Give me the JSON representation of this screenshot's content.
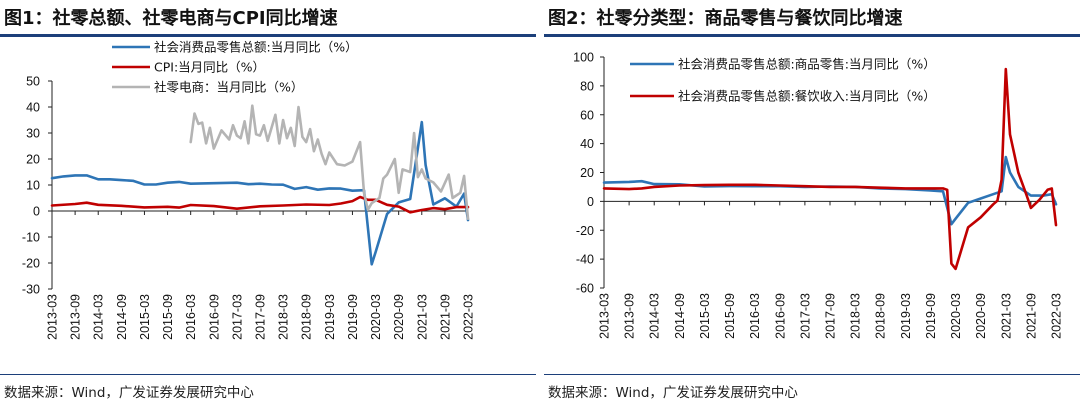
{
  "charts": [
    {
      "title": "图1：社零总额、社零电商与CPI同比增速",
      "source": "数据来源：Wind，广发证券发展研究中心"
    },
    {
      "title": "图2：社零分类型：商品零售与餐饮同比增速",
      "source": "数据来源：Wind，广发证券发展研究中心"
    }
  ],
  "chart_data": [
    {
      "type": "line",
      "title": "图1：社零总额、社零电商与CPI同比增速",
      "xlabel": "",
      "ylabel": "",
      "ylim": [
        -30,
        50
      ],
      "yticks": [
        50,
        40,
        30,
        20,
        10,
        0,
        -10,
        -20,
        -30
      ],
      "x_tick_labels": [
        "2013-03",
        "2013-09",
        "2014-03",
        "2014-09",
        "2015-03",
        "2015-09",
        "2016-03",
        "2016-09",
        "2017-03",
        "2017-09",
        "2018-03",
        "2018-09",
        "2019-03",
        "2019-09",
        "2020-03",
        "2020-09",
        "2021-03",
        "2021-09",
        "2022-03"
      ],
      "x_range": [
        "2013-03",
        "2022-03"
      ],
      "series": [
        {
          "name": "社会消费品零售总额:当月同比（%）",
          "color": "#2e75b6",
          "points": [
            [
              0,
              12.6
            ],
            [
              3,
              13.3
            ],
            [
              6,
              13.7
            ],
            [
              9,
              13.7
            ],
            [
              12,
              12.2
            ],
            [
              15,
              12.2
            ],
            [
              18,
              11.9
            ],
            [
              21,
              11.6
            ],
            [
              24,
              10.2
            ],
            [
              27,
              10.2
            ],
            [
              30,
              10.9
            ],
            [
              33,
              11.2
            ],
            [
              36,
              10.5
            ],
            [
              39,
              10.6
            ],
            [
              42,
              10.7
            ],
            [
              45,
              10.8
            ],
            [
              48,
              10.9
            ],
            [
              51,
              10.3
            ],
            [
              54,
              10.5
            ],
            [
              57,
              10.2
            ],
            [
              60,
              10.1
            ],
            [
              63,
              8.5
            ],
            [
              66,
              9.2
            ],
            [
              69,
              8.2
            ],
            [
              72,
              8.7
            ],
            [
              75,
              8.6
            ],
            [
              78,
              7.8
            ],
            [
              81,
              8.0
            ],
            [
              83,
              -20.5
            ],
            [
              84,
              -15.8
            ],
            [
              87,
              -1.1
            ],
            [
              90,
              3.3
            ],
            [
              93,
              4.6
            ],
            [
              96,
              34.2
            ],
            [
              97,
              17.7
            ],
            [
              99,
              2.5
            ],
            [
              102,
              4.9
            ],
            [
              105,
              1.7
            ],
            [
              107,
              6.7
            ],
            [
              108,
              -3.5
            ]
          ]
        },
        {
          "name": "CPI:当月同比（%）",
          "color": "#c00000",
          "points": [
            [
              0,
              2.1
            ],
            [
              6,
              2.7
            ],
            [
              9,
              3.2
            ],
            [
              12,
              2.4
            ],
            [
              18,
              2.0
            ],
            [
              24,
              1.4
            ],
            [
              30,
              1.6
            ],
            [
              33,
              1.3
            ],
            [
              36,
              2.3
            ],
            [
              42,
              1.9
            ],
            [
              48,
              0.9
            ],
            [
              54,
              1.8
            ],
            [
              60,
              2.1
            ],
            [
              66,
              2.5
            ],
            [
              72,
              2.3
            ],
            [
              75,
              2.9
            ],
            [
              78,
              3.8
            ],
            [
              80,
              5.4
            ],
            [
              82,
              4.3
            ],
            [
              84,
              4.3
            ],
            [
              87,
              2.4
            ],
            [
              90,
              1.7
            ],
            [
              93,
              -0.5
            ],
            [
              96,
              0.4
            ],
            [
              99,
              1.1
            ],
            [
              102,
              0.7
            ],
            [
              105,
              1.5
            ],
            [
              108,
              1.5
            ]
          ]
        },
        {
          "name": "社零电商：当月同比（%）",
          "color": "#b4b4b4",
          "points": [
            [
              36,
              26.5
            ],
            [
              37,
              37.5
            ],
            [
              38,
              33.5
            ],
            [
              39,
              34.0
            ],
            [
              40,
              26.0
            ],
            [
              41,
              32.0
            ],
            [
              42,
              24.0
            ],
            [
              44,
              31.0
            ],
            [
              46,
              27.5
            ],
            [
              47,
              33.0
            ],
            [
              48,
              29.0
            ],
            [
              49,
              28.0
            ],
            [
              50,
              34.5
            ],
            [
              51,
              26.0
            ],
            [
              52,
              40.5
            ],
            [
              53,
              29.5
            ],
            [
              54,
              29.0
            ],
            [
              55,
              33.0
            ],
            [
              56,
              27.0
            ],
            [
              58,
              37.0
            ],
            [
              59,
              26.0
            ],
            [
              60,
              35.0
            ],
            [
              61,
              28.0
            ],
            [
              62,
              32.0
            ],
            [
              63,
              25.0
            ],
            [
              64,
              40.0
            ],
            [
              65,
              28.5
            ],
            [
              66,
              26.5
            ],
            [
              67,
              31.5
            ],
            [
              68,
              23.0
            ],
            [
              69,
              27.5
            ],
            [
              70,
              22.0
            ],
            [
              71,
              18.0
            ],
            [
              72,
              22.5
            ],
            [
              74,
              18.0
            ],
            [
              76,
              17.5
            ],
            [
              78,
              19.0
            ],
            [
              80,
              26.5
            ],
            [
              81,
              7.0
            ],
            [
              82,
              0.5
            ],
            [
              83,
              3.0
            ],
            [
              85,
              5.0
            ],
            [
              86,
              12.5
            ],
            [
              87,
              14.0
            ],
            [
              89,
              20.0
            ],
            [
              90,
              7.0
            ],
            [
              91,
              16.0
            ],
            [
              93,
              15.0
            ],
            [
              94,
              30.0
            ],
            [
              95,
              13.0
            ],
            [
              96,
              16.0
            ],
            [
              97,
              12.5
            ],
            [
              99,
              11.0
            ],
            [
              101,
              7.5
            ],
            [
              103,
              14.0
            ],
            [
              104,
              5.0
            ],
            [
              106,
              7.0
            ],
            [
              107,
              13.5
            ],
            [
              108,
              -3.0
            ]
          ]
        }
      ]
    },
    {
      "type": "line",
      "title": "图2：社零分类型：商品零售与餐饮同比增速",
      "xlabel": "",
      "ylabel": "",
      "ylim": [
        -60,
        100
      ],
      "yticks": [
        100,
        80,
        60,
        40,
        20,
        0,
        -20,
        -40,
        -60
      ],
      "x_tick_labels": [
        "2013-03",
        "2013-09",
        "2014-03",
        "2014-09",
        "2015-03",
        "2015-09",
        "2016-03",
        "2016-09",
        "2017-03",
        "2017-09",
        "2018-03",
        "2018-09",
        "2019-03",
        "2019-09",
        "2020-03",
        "2020-09",
        "2021-03",
        "2021-09",
        "2022-03"
      ],
      "x_range": [
        "2013-03",
        "2022-03"
      ],
      "series": [
        {
          "name": "社会消费品零售总额:商品零售:当月同比（%）",
          "color": "#2e75b6",
          "points": [
            [
              0,
              13.0
            ],
            [
              6,
              13.5
            ],
            [
              9,
              14.0
            ],
            [
              12,
              12.0
            ],
            [
              18,
              11.8
            ],
            [
              24,
              10.4
            ],
            [
              30,
              10.6
            ],
            [
              36,
              10.5
            ],
            [
              42,
              10.5
            ],
            [
              48,
              10.0
            ],
            [
              54,
              10.2
            ],
            [
              60,
              10.0
            ],
            [
              66,
              9.0
            ],
            [
              72,
              8.5
            ],
            [
              78,
              7.5
            ],
            [
              81,
              7.0
            ],
            [
              83,
              -15.8
            ],
            [
              84,
              -12.0
            ],
            [
              87,
              -1.0
            ],
            [
              90,
              2.0
            ],
            [
              93,
              5.0
            ],
            [
              95,
              7.0
            ],
            [
              96,
              30.7
            ],
            [
              97,
              20.0
            ],
            [
              99,
              10.0
            ],
            [
              102,
              4.0
            ],
            [
              105,
              4.0
            ],
            [
              107,
              5.0
            ],
            [
              108,
              -2.0
            ]
          ]
        },
        {
          "name": "社会消费品零售总额:餐饮收入:当月同比（%）",
          "color": "#c00000",
          "points": [
            [
              0,
              9.0
            ],
            [
              6,
              8.5
            ],
            [
              9,
              9.0
            ],
            [
              12,
              10.0
            ],
            [
              18,
              11.0
            ],
            [
              24,
              11.3
            ],
            [
              30,
              11.5
            ],
            [
              36,
              11.5
            ],
            [
              42,
              11.0
            ],
            [
              48,
              10.5
            ],
            [
              54,
              10.0
            ],
            [
              60,
              10.0
            ],
            [
              66,
              9.5
            ],
            [
              72,
              9.0
            ],
            [
              78,
              9.0
            ],
            [
              81,
              9.0
            ],
            [
              82,
              8.0
            ],
            [
              83,
              -43.1
            ],
            [
              84,
              -46.8
            ],
            [
              87,
              -18.0
            ],
            [
              90,
              -11.0
            ],
            [
              93,
              -2.0
            ],
            [
              94,
              0.5
            ],
            [
              95,
              15.0
            ],
            [
              96,
              91.6
            ],
            [
              97,
              46.4
            ],
            [
              99,
              20.0
            ],
            [
              101,
              4.0
            ],
            [
              102,
              -4.5
            ],
            [
              104,
              1.0
            ],
            [
              106,
              8.0
            ],
            [
              107,
              8.9
            ],
            [
              108,
              -16.4
            ]
          ]
        }
      ]
    }
  ]
}
